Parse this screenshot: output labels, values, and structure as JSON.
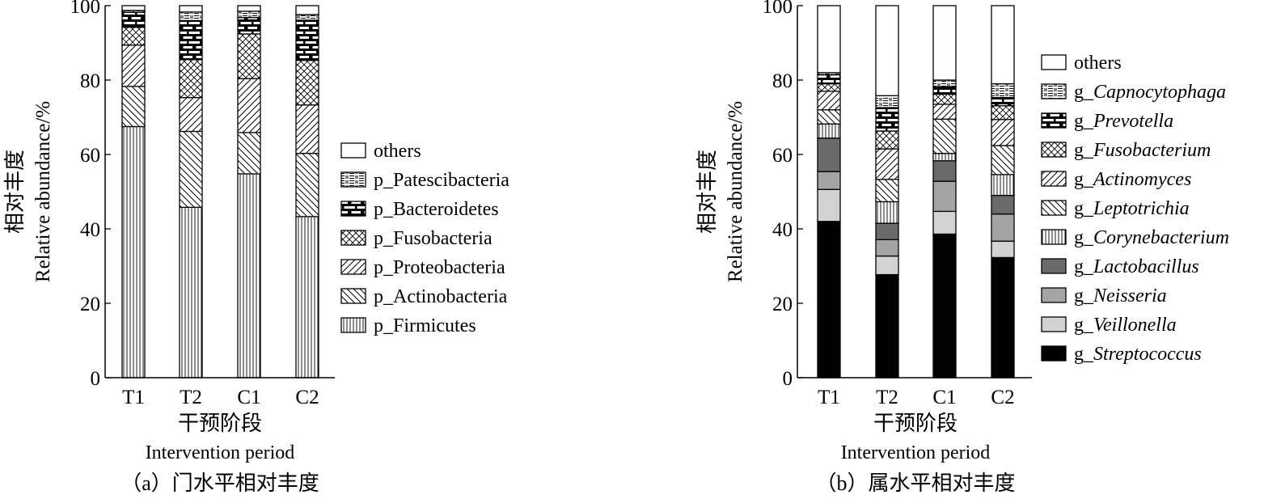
{
  "chart_data": [
    {
      "type": "bar",
      "stacked": true,
      "categories": [
        "T1",
        "T2",
        "C1",
        "C2"
      ],
      "xlabel_zh": "干预阶段",
      "xlabel_en": "Intervention period",
      "ylabel_zh": "相对丰度",
      "ylabel_en": "Relative abundance/%",
      "ylim": [
        0,
        100
      ],
      "yticks": [
        "0",
        "20",
        "40",
        "60",
        "80",
        "100"
      ],
      "caption": "（a）门水平相对丰度",
      "legend_position": "right",
      "series": [
        {
          "name": "p_Firmicutes",
          "values": [
            67.5,
            45.8,
            54.8,
            43.3
          ]
        },
        {
          "name": "p_Actinobacteria",
          "values": [
            10.8,
            20.4,
            11.1,
            17.0
          ]
        },
        {
          "name": "p_Proteobacteria",
          "values": [
            11.1,
            9.1,
            14.5,
            13.0
          ]
        },
        {
          "name": "p_Fusobacteria",
          "values": [
            4.8,
            10.2,
            12.0,
            12.0
          ]
        },
        {
          "name": "p_Bacteroidetes",
          "values": [
            4.0,
            10.5,
            4.4,
            10.8
          ]
        },
        {
          "name": "p_Patescibacteria",
          "values": [
            0.5,
            2.3,
            1.7,
            1.5
          ]
        },
        {
          "name": "others",
          "values": [
            1.3,
            1.7,
            1.5,
            2.4
          ]
        }
      ]
    },
    {
      "type": "bar",
      "stacked": true,
      "categories": [
        "T1",
        "T2",
        "C1",
        "C2"
      ],
      "xlabel_zh": "干预阶段",
      "xlabel_en": "Intervention period",
      "ylabel_zh": "相对丰度",
      "ylabel_en": "Relative abundance/%",
      "ylim": [
        0,
        100
      ],
      "yticks": [
        "0",
        "20",
        "40",
        "60",
        "80",
        "100"
      ],
      "caption": "（b）属水平相对丰度",
      "legend_position": "right",
      "series": [
        {
          "name": "g_Streptococcus",
          "values": [
            42.0,
            27.7,
            38.6,
            32.3
          ]
        },
        {
          "name": "g_Veillonella",
          "values": [
            8.6,
            5.0,
            6.1,
            4.4
          ]
        },
        {
          "name": "g_Neisseria",
          "values": [
            4.8,
            4.4,
            8.1,
            7.3
          ]
        },
        {
          "name": "g_Lactobacillus",
          "values": [
            9.0,
            4.4,
            5.5,
            5.0
          ]
        },
        {
          "name": "g_Corynebacterium",
          "values": [
            3.8,
            5.8,
            2.0,
            5.6
          ]
        },
        {
          "name": "g_Leptotrichia",
          "values": [
            3.8,
            6.0,
            9.2,
            7.8
          ]
        },
        {
          "name": "g_Actinomyces",
          "values": [
            5.0,
            8.2,
            4.0,
            7.0
          ]
        },
        {
          "name": "g_Fusobacterium",
          "values": [
            2.0,
            4.8,
            2.7,
            3.7
          ]
        },
        {
          "name": "g_Prevotella",
          "values": [
            2.4,
            6.3,
            2.0,
            2.2
          ]
        },
        {
          "name": "g_Capnocytophaga",
          "values": [
            0.6,
            3.2,
            1.8,
            3.7
          ]
        },
        {
          "name": "others",
          "values": [
            18.0,
            24.2,
            20.0,
            21.0
          ]
        }
      ]
    }
  ]
}
